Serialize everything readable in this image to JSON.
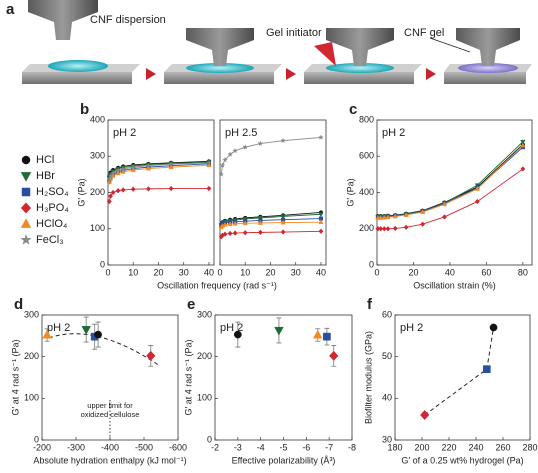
{
  "schematic": {
    "panel": "a",
    "steps": [
      "CNF dispersion",
      "Gel initiator",
      "CNF gel"
    ]
  },
  "chart_data": [
    {
      "type": "line",
      "panel": "b",
      "text": "pH 2",
      "xlabel": "Oscillation frequency (rad s⁻¹)",
      "ylabel": "G′ (Pa)",
      "xlim": [
        0,
        42
      ],
      "xticks": [
        0,
        10,
        20,
        30,
        40
      ],
      "ylim": [
        0,
        400
      ],
      "yticks": [
        0,
        100,
        200,
        300,
        400
      ],
      "legend": true,
      "x": [
        0.5,
        1,
        2,
        4,
        6,
        10,
        16,
        25,
        40
      ],
      "series": [
        {
          "name": "HCl",
          "color": "#111111",
          "marker": "circle",
          "values": [
            245,
            255,
            262,
            268,
            272,
            276,
            279,
            282,
            286
          ]
        },
        {
          "name": "HBr",
          "color": "#1e6b3a",
          "marker": "triangle-down",
          "values": [
            240,
            250,
            258,
            265,
            269,
            273,
            277,
            280,
            284
          ]
        },
        {
          "name": "H₂SO₄",
          "color": "#2a4f9e",
          "marker": "square",
          "values": [
            232,
            242,
            250,
            257,
            261,
            266,
            270,
            274,
            279
          ]
        },
        {
          "name": "H₃PO₄",
          "color": "#d22630",
          "marker": "diamond",
          "values": [
            175,
            190,
            200,
            205,
            207,
            209,
            210,
            211,
            211
          ]
        },
        {
          "name": "HClO₄",
          "color": "#f08a24",
          "marker": "triangle",
          "values": [
            228,
            238,
            246,
            253,
            257,
            262,
            266,
            270,
            275
          ]
        },
        {
          "name": "FeCl₃",
          "color": "#888888",
          "marker": "star",
          "values": [
            236,
            246,
            254,
            261,
            265,
            270,
            274,
            278,
            282
          ]
        }
      ]
    },
    {
      "type": "line",
      "text": "pH 2.5",
      "xlim": [
        0,
        42
      ],
      "xticks": [
        0,
        10,
        20,
        30,
        40
      ],
      "ylim": [
        0,
        400
      ],
      "x": [
        0.5,
        1,
        2,
        4,
        6,
        10,
        16,
        25,
        40
      ],
      "series": [
        {
          "color": "#111111",
          "marker": "circle",
          "values": [
            112,
            118,
            122,
            125,
            127,
            130,
            133,
            137,
            145
          ]
        },
        {
          "color": "#1e6b3a",
          "marker": "triangle-down",
          "values": [
            110,
            116,
            120,
            122,
            124,
            127,
            130,
            134,
            140
          ]
        },
        {
          "color": "#2a4f9e",
          "marker": "square",
          "values": [
            108,
            113,
            116,
            118,
            119,
            121,
            123,
            125,
            128
          ]
        },
        {
          "color": "#d22630",
          "marker": "diamond",
          "values": [
            78,
            82,
            85,
            87,
            88,
            89,
            90,
            91,
            93
          ]
        },
        {
          "color": "#f08a24",
          "marker": "triangle",
          "values": [
            104,
            108,
            111,
            113,
            114,
            115,
            116,
            117,
            118
          ]
        },
        {
          "color": "#888888",
          "marker": "star",
          "values": [
            250,
            275,
            290,
            305,
            315,
            325,
            335,
            343,
            352
          ]
        }
      ]
    },
    {
      "type": "line",
      "panel": "c",
      "text": "pH 2",
      "xlabel": "Oscillation strain (%)",
      "ylabel": "G′ (Pa)",
      "xlim": [
        0,
        85
      ],
      "xticks": [
        0,
        20,
        40,
        60,
        80
      ],
      "ylim": [
        0,
        800
      ],
      "yticks": [
        0,
        200,
        400,
        600,
        800
      ],
      "x": [
        0.5,
        2,
        4,
        6,
        10,
        16,
        25,
        37,
        55,
        80
      ],
      "series": [
        {
          "color": "#111111",
          "marker": "circle",
          "values": [
            270,
            270,
            270,
            272,
            275,
            283,
            300,
            345,
            430,
            665
          ]
        },
        {
          "color": "#1e6b3a",
          "marker": "triangle-down",
          "values": [
            268,
            268,
            268,
            270,
            273,
            281,
            298,
            342,
            440,
            680
          ]
        },
        {
          "color": "#2a4f9e",
          "marker": "square",
          "values": [
            265,
            265,
            265,
            267,
            270,
            278,
            295,
            340,
            425,
            650
          ]
        },
        {
          "color": "#d22630",
          "marker": "diamond",
          "values": [
            200,
            200,
            200,
            200,
            202,
            208,
            225,
            265,
            350,
            530
          ]
        },
        {
          "color": "#f08a24",
          "marker": "triangle",
          "values": [
            260,
            260,
            262,
            264,
            268,
            276,
            292,
            335,
            420,
            660
          ]
        }
      ]
    },
    {
      "type": "scatter",
      "panel": "d",
      "text": "pH 2",
      "xlabel": "Absolute hydration enthalpy (kJ mol⁻¹)",
      "ylabel": "G′ at 4 rad s⁻¹ (Pa)",
      "xlim": [
        -200,
        -600
      ],
      "xticks": [
        -200,
        -300,
        -400,
        -500,
        -600
      ],
      "ylim": [
        0,
        300
      ],
      "yticks": [
        0,
        100,
        200,
        300
      ],
      "x": [
        -215,
        -330,
        -355,
        -365,
        -520
      ],
      "values": [
        252,
        265,
        248,
        253,
        202
      ],
      "errors": [
        15,
        30,
        30,
        30,
        25
      ],
      "colors": [
        "#f08a24",
        "#1e6b3a",
        "#2a4f9e",
        "#111111",
        "#d22630"
      ],
      "markers": [
        "triangle",
        "triangle-down",
        "square",
        "circle",
        "diamond"
      ],
      "vline": {
        "x": -400,
        "label": [
          "upper limit for",
          "oxidized cellulose"
        ]
      }
    },
    {
      "type": "scatter",
      "panel": "e",
      "text": "pH 2",
      "xlabel": "Effective polarizability (Å³)",
      "ylabel": "G′ at 4 rad s⁻¹ (Pa)",
      "xlim": [
        -2,
        -8
      ],
      "xticks": [
        -2,
        -3,
        -4,
        -5,
        -6,
        -7,
        -8
      ],
      "ylim": [
        0,
        300
      ],
      "yticks": [
        0,
        100,
        200,
        300
      ],
      "x": [
        -3,
        -4.8,
        -6.5,
        -6.9,
        -7.2
      ],
      "values": [
        253,
        263,
        252,
        248,
        202
      ],
      "errors": [
        30,
        30,
        15,
        20,
        25
      ],
      "colors": [
        "#111111",
        "#1e6b3a",
        "#f08a24",
        "#2a4f9e",
        "#d22630"
      ],
      "markers": [
        "circle",
        "triangle-down",
        "triangle",
        "square",
        "diamond"
      ]
    },
    {
      "type": "scatter",
      "panel": "f",
      "text": "pH 2",
      "xlabel": "G′ of a 0.25 wt% hydrogel (Pa)",
      "ylabel": "Biofilter modulus (GPa)",
      "xlim": [
        180,
        280
      ],
      "xticks": [
        180,
        200,
        220,
        240,
        260,
        280
      ],
      "ylim": [
        30,
        60
      ],
      "yticks": [
        30,
        40,
        50,
        60
      ],
      "x": [
        202,
        248,
        253
      ],
      "values": [
        36,
        47,
        57
      ],
      "colors": [
        "#d22630",
        "#2a4f9e",
        "#111111"
      ],
      "markers": [
        "diamond",
        "square",
        "circle"
      ],
      "connect": "dashed"
    }
  ]
}
